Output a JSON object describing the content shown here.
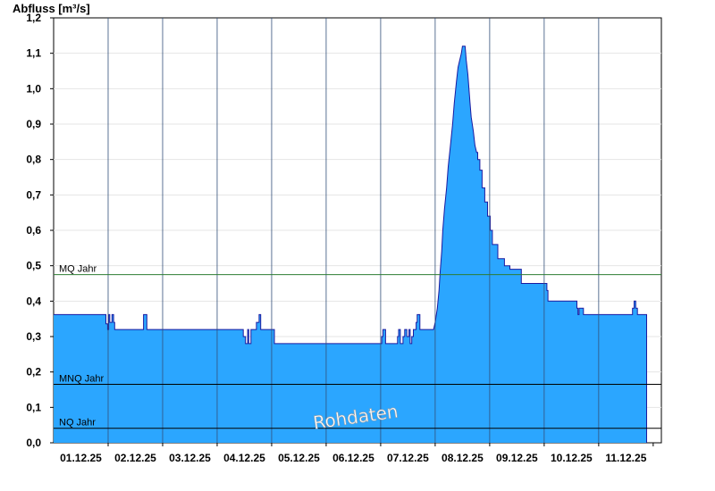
{
  "chart_data": {
    "type": "area",
    "ylabel": "Abfluss [m³/s]",
    "ylim": [
      0,
      1.2
    ],
    "yticks": [
      "0,0",
      "0,1",
      "0,2",
      "0,3",
      "0,4",
      "0,5",
      "0,6",
      "0,7",
      "0,8",
      "0,9",
      "1,0",
      "1,1",
      "1,2"
    ],
    "xticks": [
      "01.12.25",
      "02.12.25",
      "03.12.25",
      "04.12.25",
      "05.12.25",
      "06.12.25",
      "07.12.25",
      "08.12.25",
      "09.12.25",
      "10.12.25",
      "11.12.25"
    ],
    "xlim_days": [
      0,
      11.15
    ],
    "series": [
      {
        "fill": "#2ba6ff",
        "stroke": "#1a1aa0",
        "points": [
          [
            0.0,
            0.362
          ],
          [
            0.96,
            0.362
          ],
          [
            0.96,
            0.336
          ],
          [
            0.99,
            0.336
          ],
          [
            0.99,
            0.32
          ],
          [
            1.01,
            0.32
          ],
          [
            1.01,
            0.362
          ],
          [
            1.03,
            0.362
          ],
          [
            1.03,
            0.34
          ],
          [
            1.07,
            0.34
          ],
          [
            1.07,
            0.362
          ],
          [
            1.1,
            0.362
          ],
          [
            1.1,
            0.34
          ],
          [
            1.12,
            0.34
          ],
          [
            1.12,
            0.32
          ],
          [
            1.65,
            0.32
          ],
          [
            1.65,
            0.362
          ],
          [
            1.71,
            0.362
          ],
          [
            1.71,
            0.32
          ],
          [
            3.48,
            0.32
          ],
          [
            3.48,
            0.3
          ],
          [
            3.52,
            0.3
          ],
          [
            3.52,
            0.28
          ],
          [
            3.56,
            0.28
          ],
          [
            3.56,
            0.32
          ],
          [
            3.58,
            0.32
          ],
          [
            3.58,
            0.28
          ],
          [
            3.62,
            0.28
          ],
          [
            3.62,
            0.32
          ],
          [
            3.72,
            0.32
          ],
          [
            3.72,
            0.34
          ],
          [
            3.77,
            0.34
          ],
          [
            3.77,
            0.362
          ],
          [
            3.8,
            0.362
          ],
          [
            3.8,
            0.32
          ],
          [
            4.05,
            0.32
          ],
          [
            4.05,
            0.28
          ],
          [
            6.02,
            0.28
          ],
          [
            6.02,
            0.3
          ],
          [
            6.04,
            0.3
          ],
          [
            6.04,
            0.32
          ],
          [
            6.09,
            0.32
          ],
          [
            6.09,
            0.28
          ],
          [
            6.31,
            0.28
          ],
          [
            6.31,
            0.3
          ],
          [
            6.33,
            0.3
          ],
          [
            6.33,
            0.32
          ],
          [
            6.36,
            0.32
          ],
          [
            6.36,
            0.28
          ],
          [
            6.41,
            0.28
          ],
          [
            6.41,
            0.3
          ],
          [
            6.44,
            0.3
          ],
          [
            6.44,
            0.32
          ],
          [
            6.48,
            0.32
          ],
          [
            6.48,
            0.3
          ],
          [
            6.52,
            0.3
          ],
          [
            6.52,
            0.32
          ],
          [
            6.54,
            0.32
          ],
          [
            6.54,
            0.28
          ],
          [
            6.57,
            0.28
          ],
          [
            6.57,
            0.3
          ],
          [
            6.6,
            0.3
          ],
          [
            6.6,
            0.32
          ],
          [
            6.65,
            0.32
          ],
          [
            6.65,
            0.34
          ],
          [
            6.67,
            0.34
          ],
          [
            6.67,
            0.362
          ],
          [
            6.72,
            0.362
          ],
          [
            6.72,
            0.32
          ],
          [
            6.97,
            0.32
          ],
          [
            7.0,
            0.34
          ],
          [
            7.04,
            0.38
          ],
          [
            7.07,
            0.43
          ],
          [
            7.09,
            0.48
          ],
          [
            7.12,
            0.54
          ],
          [
            7.14,
            0.6
          ],
          [
            7.17,
            0.66
          ],
          [
            7.21,
            0.72
          ],
          [
            7.24,
            0.78
          ],
          [
            7.28,
            0.84
          ],
          [
            7.32,
            0.9
          ],
          [
            7.35,
            0.96
          ],
          [
            7.39,
            1.02
          ],
          [
            7.42,
            1.06
          ],
          [
            7.45,
            1.08
          ],
          [
            7.48,
            1.1
          ],
          [
            7.5,
            1.12
          ],
          [
            7.55,
            1.12
          ],
          [
            7.57,
            1.08
          ],
          [
            7.6,
            1.04
          ],
          [
            7.62,
            1.0
          ],
          [
            7.64,
            0.96
          ],
          [
            7.66,
            0.92
          ],
          [
            7.7,
            0.88
          ],
          [
            7.73,
            0.84
          ],
          [
            7.76,
            0.82
          ],
          [
            7.78,
            0.82
          ],
          [
            7.78,
            0.8
          ],
          [
            7.82,
            0.8
          ],
          [
            7.82,
            0.77
          ],
          [
            7.86,
            0.77
          ],
          [
            7.86,
            0.72
          ],
          [
            7.91,
            0.72
          ],
          [
            7.91,
            0.68
          ],
          [
            7.96,
            0.68
          ],
          [
            7.96,
            0.64
          ],
          [
            8.01,
            0.64
          ],
          [
            8.01,
            0.6
          ],
          [
            8.05,
            0.6
          ],
          [
            8.05,
            0.56
          ],
          [
            8.15,
            0.56
          ],
          [
            8.15,
            0.52
          ],
          [
            8.27,
            0.52
          ],
          [
            8.27,
            0.5
          ],
          [
            8.37,
            0.5
          ],
          [
            8.37,
            0.49
          ],
          [
            8.58,
            0.49
          ],
          [
            8.58,
            0.45
          ],
          [
            9.05,
            0.45
          ],
          [
            9.05,
            0.43
          ],
          [
            9.07,
            0.43
          ],
          [
            9.07,
            0.4
          ],
          [
            9.6,
            0.4
          ],
          [
            9.6,
            0.38
          ],
          [
            9.62,
            0.38
          ],
          [
            9.62,
            0.362
          ],
          [
            9.64,
            0.362
          ],
          [
            9.64,
            0.38
          ],
          [
            9.72,
            0.38
          ],
          [
            9.72,
            0.362
          ],
          [
            10.62,
            0.362
          ],
          [
            10.62,
            0.38
          ],
          [
            10.65,
            0.38
          ],
          [
            10.65,
            0.4
          ],
          [
            10.68,
            0.4
          ],
          [
            10.68,
            0.38
          ],
          [
            10.71,
            0.38
          ],
          [
            10.71,
            0.362
          ],
          [
            10.88,
            0.362
          ],
          [
            10.88,
            0.0
          ]
        ]
      }
    ],
    "reference_lines": [
      {
        "label": "MQ Jahr",
        "value": 0.475,
        "color": "#2e7d32"
      },
      {
        "label": "MNQ Jahr",
        "value": 0.165,
        "color": "#000000"
      },
      {
        "label": "NQ Jahr",
        "value": 0.041,
        "color": "#000000"
      }
    ],
    "watermark": "Rohdaten",
    "grid": true
  }
}
